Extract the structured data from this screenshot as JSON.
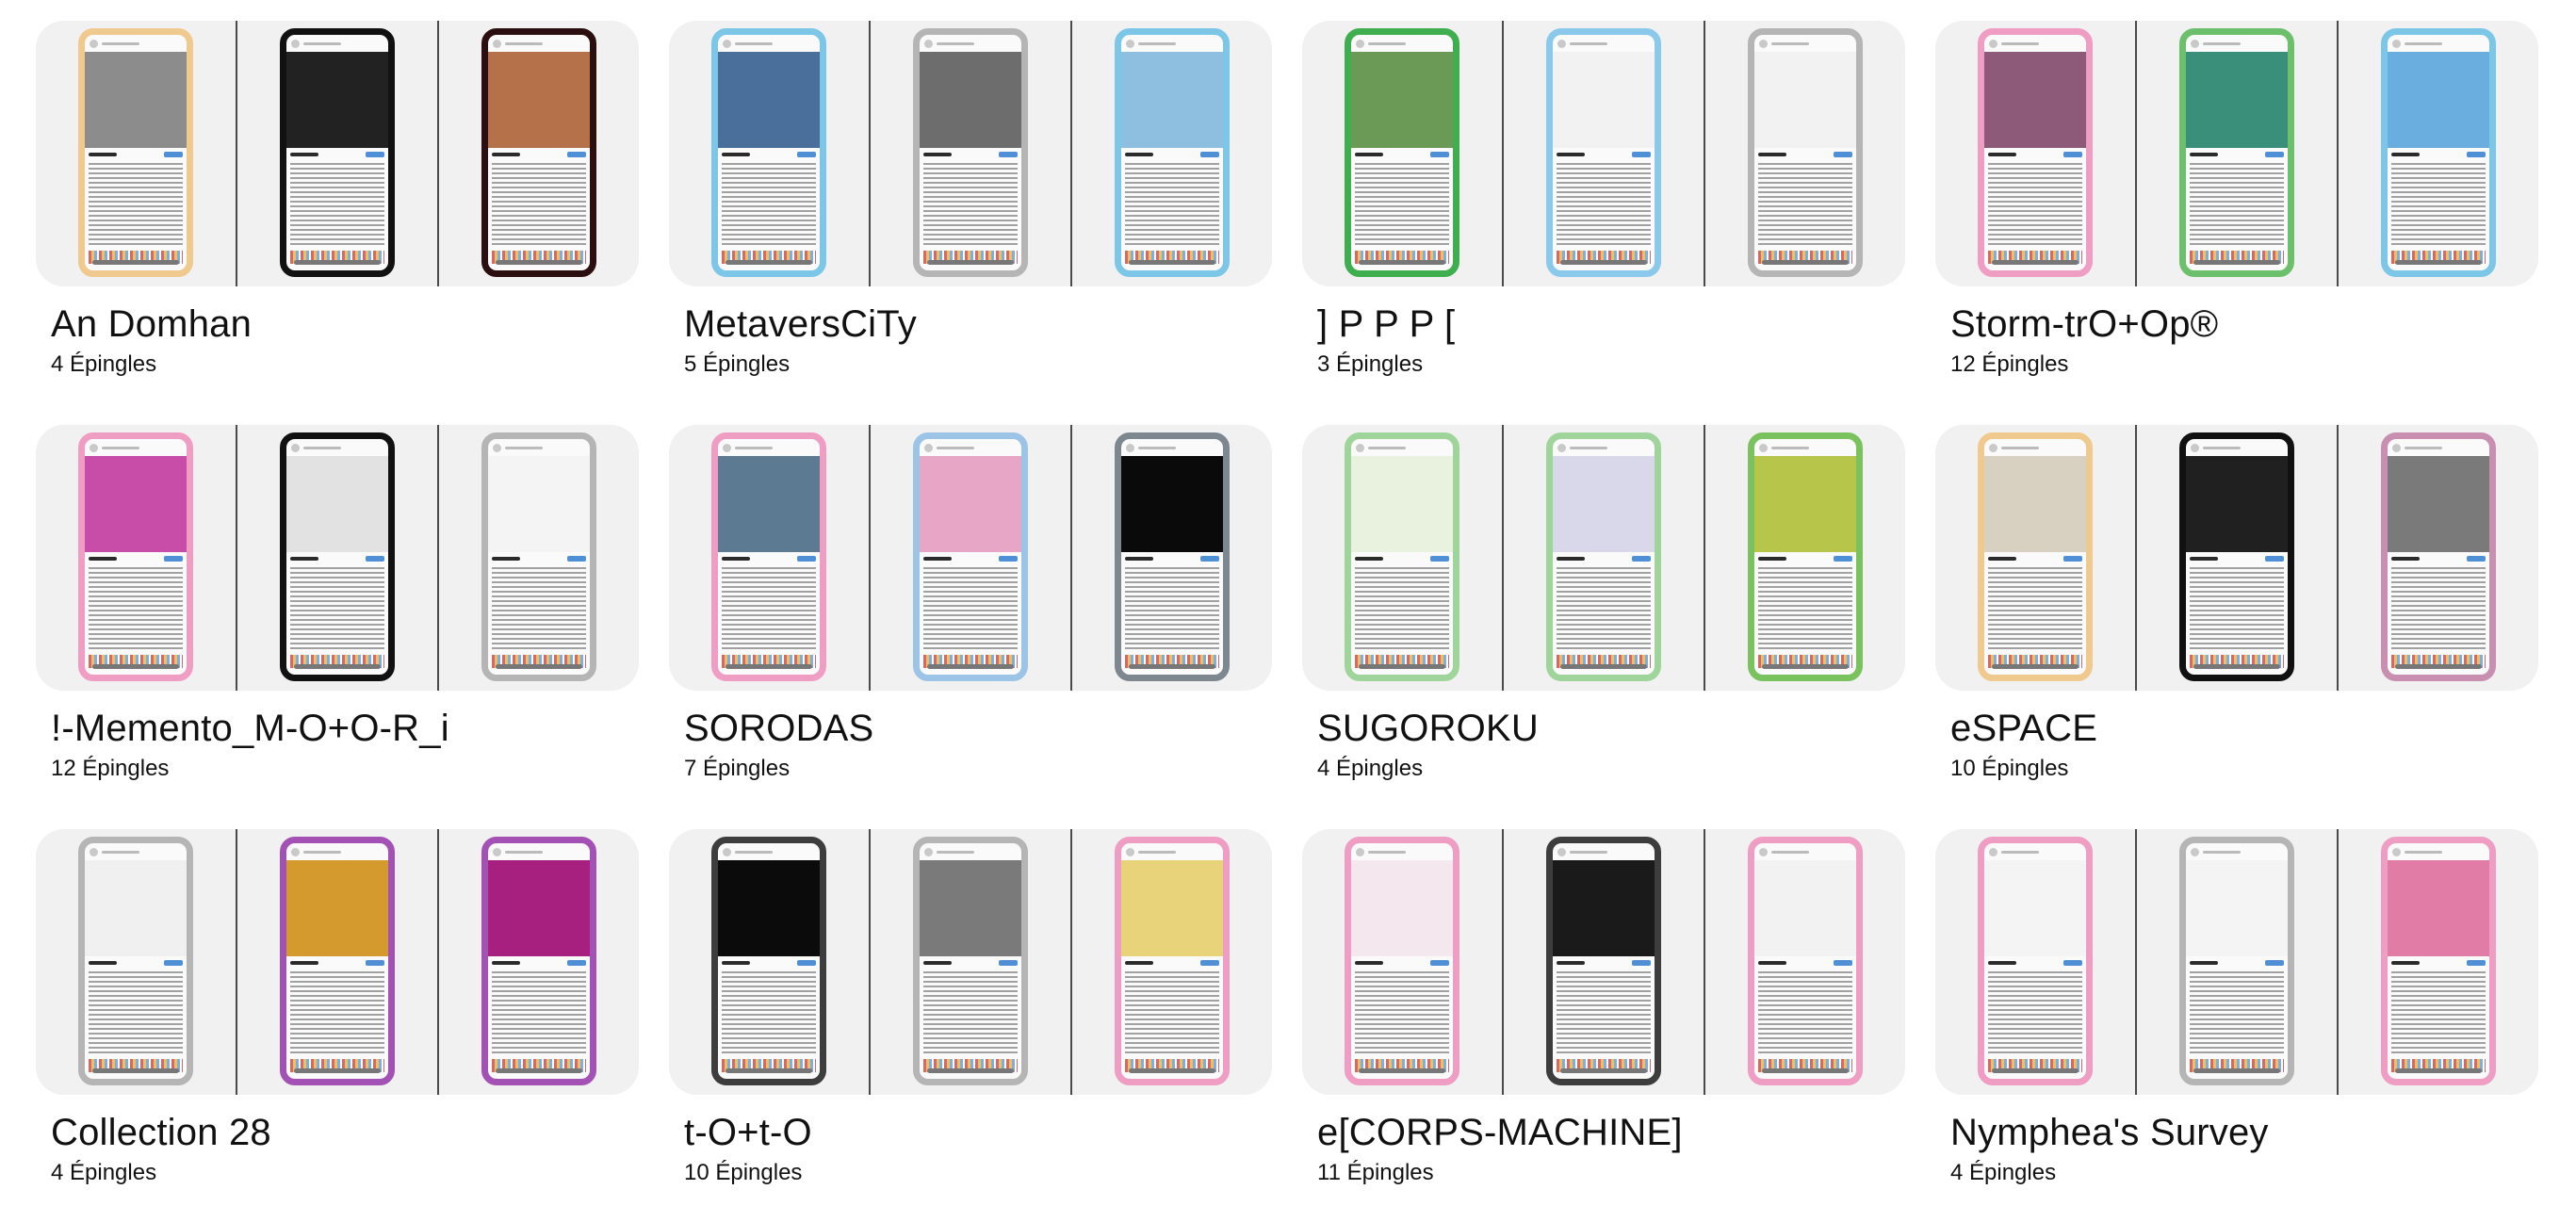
{
  "boards": [
    {
      "title": "An Domhan",
      "pins": "4 Épingles",
      "frames": [
        "#f0c98e",
        "#111111",
        "#2b0f10"
      ],
      "art": [
        "#8c8c8c",
        "#222222",
        "#b5714a"
      ]
    },
    {
      "title": "MetaversCiTy",
      "pins": "5 Épingles",
      "frames": [
        "#7cc6e8",
        "#b5b5b5",
        "#7cc6e8"
      ],
      "art": [
        "#4a6f9a",
        "#6d6d6d",
        "#8fbfe0"
      ]
    },
    {
      "title": "] P P P [",
      "pins": "3 Épingles",
      "frames": [
        "#3fae4e",
        "#8ac9ec",
        "#b5b5b5"
      ],
      "art": [
        "#6a9a55",
        "#f2f2f2",
        "#f2f2f2"
      ]
    },
    {
      "title": "Storm-trO+Op®",
      "pins": "12 Épingles",
      "frames": [
        "#ef9dc3",
        "#6cc06c",
        "#7cc6e8"
      ],
      "art": [
        "#8d5a7a",
        "#3a8f7a",
        "#6aaee0"
      ]
    },
    {
      "title": "!-Memento_M-O+O-R_i",
      "pins": "12 Épingles",
      "frames": [
        "#ef9dc3",
        "#111111",
        "#b5b5b5"
      ],
      "art": [
        "#c84da8",
        "#e2e2e2",
        "#f4f4f4"
      ]
    },
    {
      "title": "SORODAS",
      "pins": "7 Épingles",
      "frames": [
        "#ef9dc3",
        "#9cc4e6",
        "#7c8790"
      ],
      "art": [
        "#5c7a92",
        "#e7a6c6",
        "#0a0a0a"
      ]
    },
    {
      "title": "SUGOROKU",
      "pins": "4 Épingles",
      "frames": [
        "#9fd49a",
        "#9fd49a",
        "#79c25e"
      ],
      "art": [
        "#e9f1df",
        "#d8d8ea",
        "#b7c64a"
      ]
    },
    {
      "title": "eSPACE",
      "pins": "10 Épingles",
      "frames": [
        "#f0c98e",
        "#111111",
        "#c98fb0"
      ],
      "art": [
        "#d8d0c0",
        "#202020",
        "#7a7a7a"
      ]
    },
    {
      "title": "Collection 28",
      "pins": "4 Épingles",
      "frames": [
        "#b5b5b5",
        "#a451b5",
        "#a451b5"
      ],
      "art": [
        "#f0f0f0",
        "#d49a2e",
        "#a8207f"
      ]
    },
    {
      "title": "t-O+t-O",
      "pins": "10 Épingles",
      "frames": [
        "#3d3d3d",
        "#b5b5b5",
        "#ef9dc3"
      ],
      "art": [
        "#0b0b0b",
        "#7a7a7a",
        "#e8d27a"
      ]
    },
    {
      "title": "e[CORPS-MACHINE]",
      "pins": "11 Épingles",
      "frames": [
        "#ef9dc3",
        "#3d3d3d",
        "#ef9dc3"
      ],
      "art": [
        "#f4e8ee",
        "#1a1a1a",
        "#f2f2f2"
      ]
    },
    {
      "title": "Nymphea's Survey",
      "pins": "4 Épingles",
      "frames": [
        "#ef9dc3",
        "#b5b5b5",
        "#ef9dc3"
      ],
      "art": [
        "#f4f4f4",
        "#f4f4f4",
        "#e07ca6"
      ]
    }
  ]
}
